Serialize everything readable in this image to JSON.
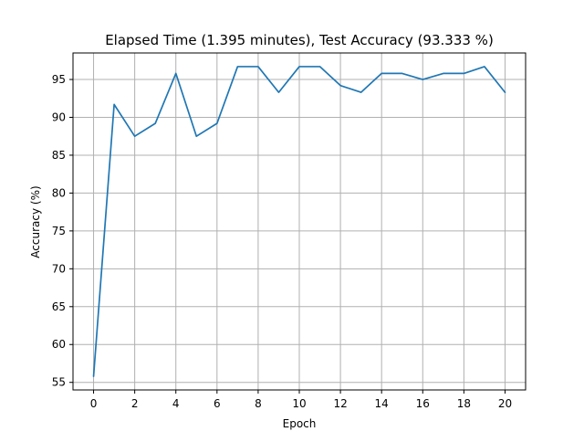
{
  "chart_data": {
    "type": "line",
    "title": "Elapsed Time (1.395 minutes), Test Accuracy (93.333 %)",
    "xlabel": "Epoch",
    "ylabel": "Accuracy (%)",
    "xlim": [
      -1,
      21
    ],
    "ylim": [
      54,
      98.5
    ],
    "xticks": [
      0,
      2,
      4,
      6,
      8,
      10,
      12,
      14,
      16,
      18,
      20
    ],
    "yticks": [
      55,
      60,
      65,
      70,
      75,
      80,
      85,
      90,
      95
    ],
    "grid": true,
    "series": [
      {
        "name": "Accuracy",
        "color": "#1f77b4",
        "x": [
          0,
          1,
          2,
          3,
          4,
          5,
          6,
          7,
          8,
          9,
          10,
          11,
          12,
          13,
          14,
          15,
          16,
          17,
          18,
          19,
          20
        ],
        "values": [
          55.8,
          91.7,
          87.5,
          89.2,
          95.8,
          87.5,
          89.2,
          96.7,
          96.7,
          93.3,
          96.7,
          96.7,
          94.2,
          93.3,
          95.8,
          95.8,
          95.0,
          95.8,
          95.8,
          96.7,
          93.3
        ]
      }
    ],
    "colors": {
      "grid": "#b0b0b0",
      "axes": "#000000",
      "line": "#1f77b4"
    }
  }
}
